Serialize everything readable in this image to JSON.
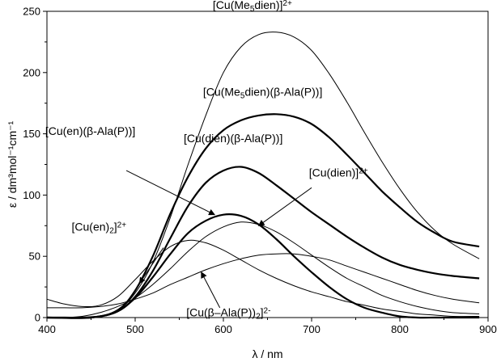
{
  "chart_data": {
    "type": "line",
    "xlabel": "λ / nm",
    "ylabel": "ε / dm³mol⁻¹cm⁻¹",
    "xlim": [
      400,
      900
    ],
    "ylim": [
      0,
      250
    ],
    "xticks": [
      400,
      500,
      600,
      700,
      800,
      900
    ],
    "yticks": [
      0,
      50,
      100,
      150,
      200,
      250
    ],
    "grid": false,
    "legend": "none",
    "series": [
      {
        "name": "[Cu(Me5dien)]2+",
        "stroke": "thin",
        "x": [
          400,
          450,
          480,
          500,
          520,
          540,
          560,
          580,
          600,
          620,
          640,
          660,
          680,
          700,
          720,
          740,
          760,
          780,
          800,
          820,
          840,
          860,
          890
        ],
        "y": [
          0,
          0,
          6,
          20,
          45,
          82,
          125,
          165,
          200,
          221,
          231,
          233,
          229,
          218,
          199,
          176,
          151,
          127,
          105,
          86,
          71,
          60,
          48
        ]
      },
      {
        "name": "[Cu(Me5dien)(β-Ala(P))]",
        "stroke": "thick",
        "x": [
          400,
          450,
          480,
          500,
          520,
          540,
          560,
          580,
          600,
          620,
          640,
          660,
          680,
          700,
          720,
          740,
          760,
          780,
          800,
          820,
          840,
          860,
          890
        ],
        "y": [
          0,
          0,
          6,
          22,
          50,
          85,
          115,
          138,
          153,
          161,
          165,
          166,
          164,
          158,
          147,
          133,
          118,
          103,
          90,
          78,
          69,
          62,
          58
        ]
      },
      {
        "name": "[Cu(dien)(β-Ala(P))]",
        "stroke": "thick",
        "x": [
          400,
          450,
          480,
          500,
          520,
          540,
          560,
          580,
          600,
          620,
          640,
          660,
          680,
          700,
          720,
          740,
          760,
          780,
          800,
          820,
          840,
          860,
          890
        ],
        "y": [
          0,
          0,
          5,
          17,
          38,
          65,
          91,
          110,
          120,
          123,
          118,
          108,
          97,
          86,
          76,
          66,
          57,
          49,
          43,
          39,
          36,
          34,
          32
        ]
      },
      {
        "name": "[Cu(en)(β-Ala(P))]",
        "stroke": "thick",
        "x": [
          400,
          420,
          440,
          460,
          480,
          500,
          520,
          540,
          560,
          580,
          600,
          620,
          640,
          660,
          680,
          700,
          720,
          740,
          760,
          780,
          800,
          820,
          840,
          860,
          890
        ],
        "y": [
          0,
          0,
          0,
          1,
          5,
          16,
          33,
          52,
          69,
          79,
          84,
          83,
          76,
          64,
          50,
          37,
          25,
          15,
          8,
          4,
          1,
          0,
          0,
          0,
          0
        ]
      },
      {
        "name": "[Cu(dien)]2+",
        "stroke": "thin",
        "x": [
          400,
          420,
          440,
          460,
          480,
          500,
          520,
          540,
          560,
          580,
          600,
          620,
          640,
          660,
          680,
          700,
          720,
          740,
          760,
          780,
          800,
          820,
          840,
          860,
          890
        ],
        "y": [
          0,
          0,
          1,
          4,
          9,
          16,
          27,
          40,
          54,
          66,
          74,
          78,
          76,
          70,
          61,
          51,
          41,
          32,
          25,
          18,
          13,
          9,
          6,
          4,
          3
        ]
      },
      {
        "name": "[Cu(en)2]2+",
        "stroke": "thin",
        "x": [
          400,
          420,
          440,
          460,
          480,
          500,
          520,
          540,
          560,
          580,
          600,
          620,
          640,
          660,
          680,
          700,
          720,
          740,
          760,
          780,
          800,
          820,
          840,
          860,
          890
        ],
        "y": [
          15,
          11,
          9,
          10,
          17,
          31,
          46,
          58,
          63,
          61,
          55,
          47,
          39,
          32,
          26,
          21,
          17,
          13,
          10,
          7,
          5,
          3,
          2,
          1,
          1
        ]
      },
      {
        "name": "[Cu(β–Ala(P))2]2-",
        "stroke": "thin",
        "x": [
          400,
          420,
          440,
          460,
          480,
          500,
          520,
          540,
          560,
          580,
          600,
          620,
          640,
          660,
          680,
          700,
          720,
          740,
          760,
          780,
          800,
          820,
          840,
          860,
          890
        ],
        "y": [
          8,
          8,
          8,
          9,
          11,
          15,
          20,
          27,
          33,
          39,
          44,
          48,
          51,
          52,
          52,
          50,
          47,
          42,
          37,
          32,
          27,
          22,
          18,
          15,
          12
        ]
      }
    ],
    "annotations": [
      {
        "id": "ann-me5dien",
        "parts": [
          [
            "[Cu(Me",
            ""
          ],
          [
            "5",
            "sub"
          ],
          [
            "dien)]",
            ""
          ],
          [
            "2+",
            "sup"
          ]
        ],
        "at": [
          588,
          252
        ],
        "arrow": null
      },
      {
        "id": "ann-me5dien-ala",
        "parts": [
          [
            "[Cu(Me",
            ""
          ],
          [
            "5",
            "sub"
          ],
          [
            "dien)(β-Ala(P))]",
            ""
          ]
        ],
        "at": [
          577,
          181
        ],
        "arrow": null
      },
      {
        "id": "ann-dien-ala",
        "parts": [
          [
            "[Cu(dien)(β-Ala(P))]",
            ""
          ]
        ],
        "at": [
          555,
          143
        ],
        "arrow": null
      },
      {
        "id": "ann-en-ala",
        "parts": [
          [
            "[Cu(en)(β-Ala(P))]",
            ""
          ]
        ],
        "at": [
          398,
          149
        ],
        "arrow": {
          "from": [
            490,
            120
          ],
          "to": [
            590,
            84
          ]
        }
      },
      {
        "id": "ann-dien",
        "parts": [
          [
            "[Cu(dien)]",
            ""
          ],
          [
            "2+",
            "sup"
          ]
        ],
        "at": [
          697,
          115
        ],
        "arrow": {
          "from": [
            700,
            106
          ],
          "to": [
            640,
            75
          ]
        }
      },
      {
        "id": "ann-en2",
        "parts": [
          [
            "[Cu(en)",
            ""
          ],
          [
            "2",
            "sub"
          ],
          [
            "]",
            ""
          ],
          [
            "2+",
            "sup"
          ]
        ],
        "at": [
          428,
          71
        ],
        "arrow": {
          "from": [
            532,
            57
          ],
          "to": [
            505,
            28
          ]
        }
      },
      {
        "id": "ann-ala2",
        "parts": [
          [
            "[Cu(β–Ala(P))",
            ""
          ],
          [
            "2",
            "sub"
          ],
          [
            "]",
            ""
          ],
          [
            "2-",
            "sup"
          ]
        ],
        "at": [
          558,
          1
        ],
        "arrow": {
          "from": [
            596,
            8
          ],
          "to": [
            575,
            37
          ]
        }
      }
    ]
  }
}
